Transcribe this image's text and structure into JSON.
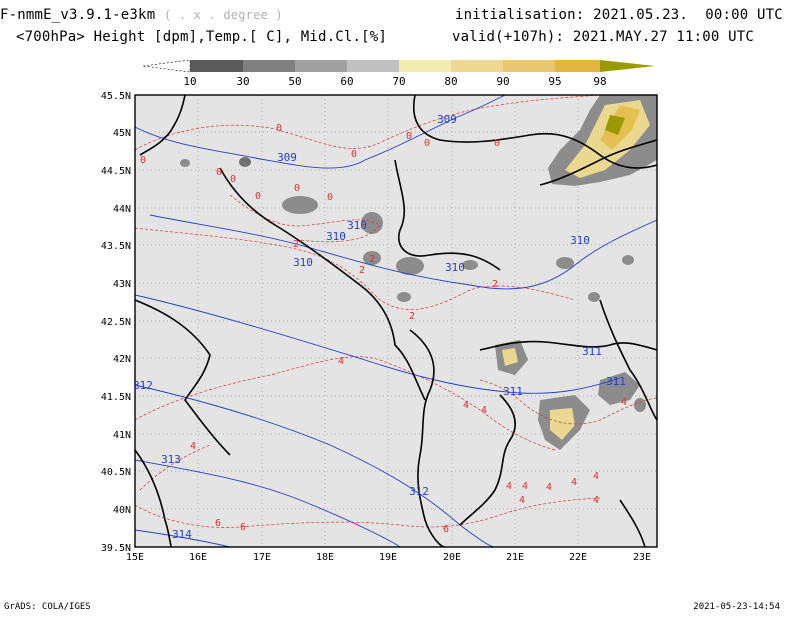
{
  "header": {
    "model": "F-nmmE_v3.9.1-e3km",
    "grid_note": "( . x . degree )",
    "subtitle": "<700hPa> Height [dpm],Temp.[ C], Mid.Cl.[%]",
    "init_label": "initialisation:",
    "init_value": "2021.05.23.  00:00 UTC",
    "valid_label": "valid(+107h):",
    "valid_value": "2021.MAY.27 11:00 UTC"
  },
  "legend": {
    "levels": [
      "10",
      "30",
      "50",
      "60",
      "70",
      "80",
      "90",
      "95",
      "98"
    ],
    "colors": [
      "#5a5a5a",
      "#808080",
      "#a0a0a0",
      "#c0c0c0",
      "#f2edb0",
      "#ecd890",
      "#e8c870",
      "#e2b840",
      "#9a9a00"
    ]
  },
  "map": {
    "lat_labels": [
      "45.5N",
      "45N",
      "44.5N",
      "44N",
      "43.5N",
      "43N",
      "42.5N",
      "42N",
      "41.5N",
      "41N",
      "40.5N",
      "40N",
      "39.5N"
    ],
    "lon_labels": [
      "15E",
      "16E",
      "17E",
      "18E",
      "19E",
      "20E",
      "21E",
      "22E",
      "23E"
    ],
    "height_contours": [
      {
        "label": "309",
        "color": "#2040d0"
      },
      {
        "label": "309",
        "color": "#2040d0"
      },
      {
        "label": "310",
        "color": "#2040d0"
      },
      {
        "label": "310",
        "color": "#2040d0"
      },
      {
        "label": "310",
        "color": "#2040d0"
      },
      {
        "label": "310",
        "color": "#2040d0"
      },
      {
        "label": "311",
        "color": "#2040d0"
      },
      {
        "label": "311",
        "color": "#2040d0"
      },
      {
        "label": "311",
        "color": "#2040d0"
      },
      {
        "label": "312",
        "color": "#2040d0"
      },
      {
        "label": "312",
        "color": "#2040d0"
      },
      {
        "label": "313",
        "color": "#2040d0"
      },
      {
        "label": "314",
        "color": "#2040d0"
      },
      {
        "label": "310",
        "color": "#2040d0"
      }
    ],
    "temp_labels": [
      "0",
      "0",
      "0",
      "0",
      "0",
      "0",
      "0",
      "0",
      "0",
      "0",
      "0",
      "2",
      "2",
      "2",
      "2",
      "2",
      "4",
      "4",
      "4",
      "4",
      "4",
      "4",
      "4",
      "4",
      "4",
      "4",
      "4",
      "4",
      "6",
      "6",
      "6"
    ]
  },
  "footer": {
    "left": "GrADS: COLA/IGES",
    "right": "2021-05-23-14:54"
  }
}
